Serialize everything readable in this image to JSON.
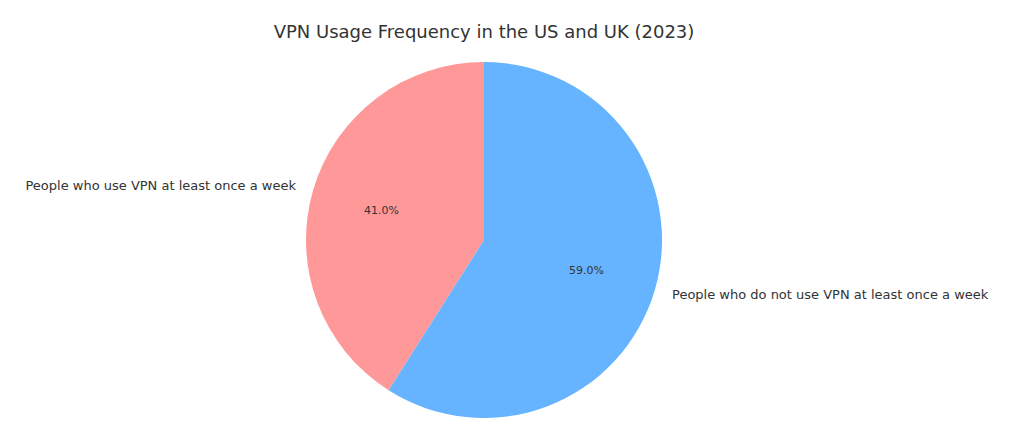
{
  "chart_data": {
    "type": "pie",
    "title": "VPN Usage Frequency in the US and UK (2023)",
    "categories": [
      "People who use VPN at least once a week",
      "People who do not use VPN at least once a week"
    ],
    "values": [
      41.0,
      59.0
    ],
    "value_labels": [
      "41.0%",
      "59.0%"
    ],
    "colors": [
      "#ff9999",
      "#66b3ff"
    ],
    "data_labels": true
  }
}
